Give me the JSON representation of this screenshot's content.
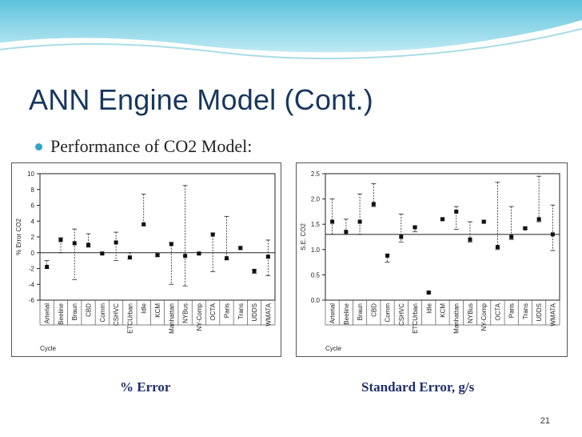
{
  "slide": {
    "title": "ANN Engine Model (Cont.)",
    "bullet": "Performance of CO2 Model:",
    "caption_left": "% Error",
    "caption_right": "Standard Error, g/s",
    "slide_number": "21",
    "accent_color": "#17375e",
    "bullet_color": "#33a3c8",
    "bullet_icon": "circle-bullet"
  },
  "chart_data": [
    {
      "type": "scatter",
      "title": "",
      "ylabel": "% Error CO2",
      "xlabel": "Cycle",
      "ylim": [
        -6,
        10
      ],
      "yticks": [
        10,
        8,
        6,
        4,
        2,
        0,
        -2,
        -4,
        -6
      ],
      "reference_line": 0,
      "categories": [
        "Arterial",
        "Beeline",
        "Braun",
        "CBD",
        "Comm",
        "CSHVC",
        "ETCUrban",
        "Idle",
        "KCM",
        "Manhattan",
        "NYBus",
        "NY-Comp",
        "OCTA",
        "Paris",
        "Trans",
        "UDDS",
        "WMATA"
      ],
      "series": [
        {
          "values": [
            -1.8,
            1.6,
            1.2,
            1.0,
            -0.1,
            1.3,
            -0.6,
            3.6,
            -0.3,
            1.1,
            -0.4,
            -0.1,
            2.3,
            -0.7,
            0.6,
            -2.3,
            -0.5
          ]
        }
      ],
      "error_high": [
        -1.0,
        1.9,
        3.0,
        2.4,
        0.0,
        2.6,
        0.0,
        7.4,
        -0.2,
        1.3,
        8.5,
        0.0,
        2.5,
        4.6,
        0.8,
        -2.1,
        1.6
      ],
      "error_low": [
        -2.0,
        0.0,
        -3.4,
        0.7,
        -0.2,
        -1.0,
        -0.8,
        3.4,
        -0.5,
        -4.0,
        -4.2,
        -0.2,
        -2.4,
        -0.9,
        0.4,
        -2.6,
        -2.9
      ]
    },
    {
      "type": "scatter",
      "title": "",
      "ylabel": "S.E. CO2",
      "xlabel": "Cycle",
      "ylim": [
        0,
        2.5
      ],
      "yticks": [
        "2.5",
        "2.0",
        "1.5",
        "1.0",
        "0.5",
        "0.0"
      ],
      "reference_line": 1.3,
      "categories": [
        "Arterial",
        "Beeline",
        "Braun",
        "CBD",
        "Comm",
        "CSHVC",
        "ETCUrban",
        "Idle",
        "KCM",
        "Manhattan",
        "NYBus",
        "NY-Comp",
        "OCTA",
        "Paris",
        "Trans",
        "UDDS",
        "WMATA"
      ],
      "series": [
        {
          "values": [
            1.55,
            1.35,
            1.55,
            1.9,
            0.88,
            1.25,
            1.44,
            0.15,
            1.6,
            1.75,
            1.2,
            1.55,
            1.05,
            1.25,
            1.42,
            1.6,
            1.3
          ]
        }
      ],
      "error_high": [
        2.0,
        1.6,
        2.1,
        2.3,
        0.9,
        1.7,
        1.45,
        0.17,
        1.62,
        1.85,
        1.55,
        1.57,
        2.33,
        1.85,
        1.44,
        2.45,
        1.88
      ],
      "error_low": [
        1.3,
        1.3,
        1.3,
        1.85,
        0.75,
        1.15,
        1.35,
        0.13,
        1.58,
        1.4,
        1.15,
        1.53,
        1.0,
        1.2,
        1.4,
        1.55,
        0.98
      ]
    }
  ]
}
